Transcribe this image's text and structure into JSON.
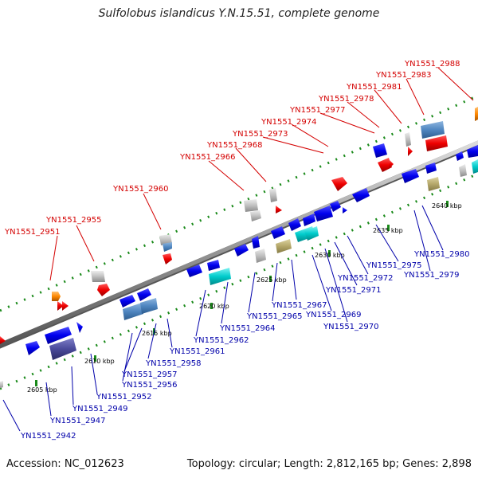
{
  "title": "Sulfolobus islandicus Y.N.15.51, complete genome",
  "footer": {
    "accession": "Accession: NC_012623",
    "summary": "Topology: circular; Length: 2,812,165 bp; Genes: 2,898"
  },
  "colors": {
    "upper_label": "#d40000",
    "lower_label": "#0000aa",
    "backbone": "#9a9a9a",
    "dots": "#1a8a1a",
    "gene_blue": "#0000ee",
    "gene_red": "#ee0000",
    "gene_cyan": "#00cccc",
    "gene_steel": "#4f86c0",
    "gene_grey": "#bbbbbb",
    "gene_olive": "#b5a86a",
    "gene_navy": "#4a4a9a",
    "gene_orange": "#ff8800"
  },
  "scale_ticks": [
    "2605 kbp",
    "2610 kbp",
    "2615 kbp",
    "2620 kbp",
    "2625 kbp",
    "2630 kbp",
    "2635 kbp",
    "2640 kbp"
  ],
  "upper_genes": [
    "YN1551_2951",
    "YN1551_2955",
    "YN1551_2960",
    "YN1551_2966",
    "YN1551_2968",
    "YN1551_2973",
    "YN1551_2974",
    "YN1551_2977",
    "YN1551_2978",
    "YN1551_2981",
    "YN1551_2983",
    "YN1551_2988"
  ],
  "lower_genes": [
    "YN1551_2942",
    "YN1551_2947",
    "YN1551_2949",
    "YN1551_2952",
    "YN1551_2956",
    "YN1551_2957",
    "YN1551_2958",
    "YN1551_2961",
    "YN1551_2962",
    "YN1551_2964",
    "YN1551_2965",
    "YN1551_2967",
    "YN1551_2969",
    "YN1551_2970",
    "YN1551_2971",
    "YN1551_2972",
    "YN1551_2975",
    "YN1551_2979",
    "YN1551_2980"
  ]
}
